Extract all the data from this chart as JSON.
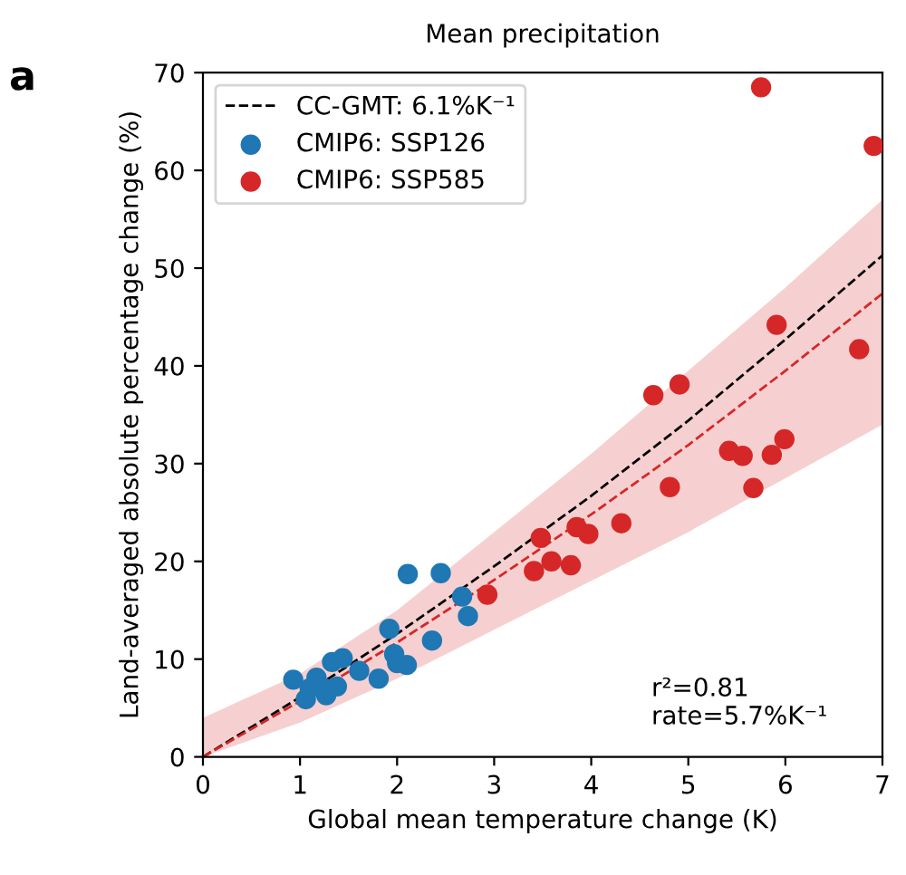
{
  "chart_data": {
    "type": "scatter",
    "title": "Mean precipitation",
    "xlabel": "Global mean temperature change (K)",
    "ylabel": "Land-averaged absolute percentage change (%)",
    "xlim": [
      0,
      7
    ],
    "ylim": [
      0,
      70
    ],
    "xticks": [
      0,
      1,
      2,
      3,
      4,
      5,
      6,
      7
    ],
    "yticks": [
      0,
      10,
      20,
      30,
      40,
      50,
      60,
      70
    ],
    "grid": false,
    "legend": "top left",
    "marker": "circle",
    "annotations": [
      "a",
      "r²=0.81\nrate=5.7%K⁻¹"
    ],
    "series": [
      {
        "name": "CC-GMT: 6.1%K⁻¹",
        "type": "line",
        "line_style": "dashed",
        "marker": "none",
        "color": "#000000",
        "x": [
          0,
          1,
          2,
          3,
          4,
          5,
          6,
          7
        ],
        "values": [
          0,
          6.1,
          12.6,
          19.5,
          26.7,
          34.4,
          42.7,
          51.3
        ]
      },
      {
        "type": "line",
        "line_style": "dashed",
        "marker": "none",
        "color": "#d62728",
        "x": [
          0,
          1,
          2,
          3,
          4,
          5,
          6,
          7
        ],
        "values": [
          0,
          5.7,
          11.7,
          18.1,
          24.8,
          31.9,
          39.5,
          47.4
        ],
        "lower": [
          0,
          3.5,
          8,
          13,
          18,
          23,
          28.5,
          34
        ],
        "upper": [
          4,
          8.5,
          15,
          23,
          31,
          39.5,
          48,
          57
        ]
      },
      {
        "name": "CMIP6: SSP126",
        "color": "#1f77b4",
        "x": [
          0.93,
          1.06,
          1.17,
          1.27,
          1.33,
          1.44,
          1.38,
          1.61,
          1.81,
          1.92,
          1.97,
          2.0,
          2.1,
          2.11,
          2.45,
          2.36,
          2.67,
          2.73,
          1.25,
          1.1
        ],
        "values": [
          7.9,
          5.9,
          8.1,
          6.3,
          9.7,
          10.1,
          7.2,
          8.8,
          8.0,
          13.1,
          10.5,
          9.6,
          9.4,
          18.7,
          18.8,
          11.9,
          16.4,
          14.4,
          7.0,
          7.0
        ]
      },
      {
        "name": "CMIP6: SSP585",
        "color": "#d62728",
        "x": [
          2.93,
          3.48,
          3.41,
          3.59,
          3.79,
          3.85,
          3.97,
          4.31,
          4.64,
          4.91,
          4.81,
          5.42,
          5.56,
          5.67,
          5.86,
          5.99,
          5.91,
          6.76,
          6.91,
          5.75
        ],
        "values": [
          16.6,
          22.4,
          19.0,
          20.0,
          19.6,
          23.5,
          22.8,
          23.9,
          37.0,
          38.1,
          27.6,
          31.3,
          30.8,
          27.5,
          30.9,
          32.5,
          44.2,
          41.7,
          62.5,
          68.5
        ]
      }
    ]
  }
}
